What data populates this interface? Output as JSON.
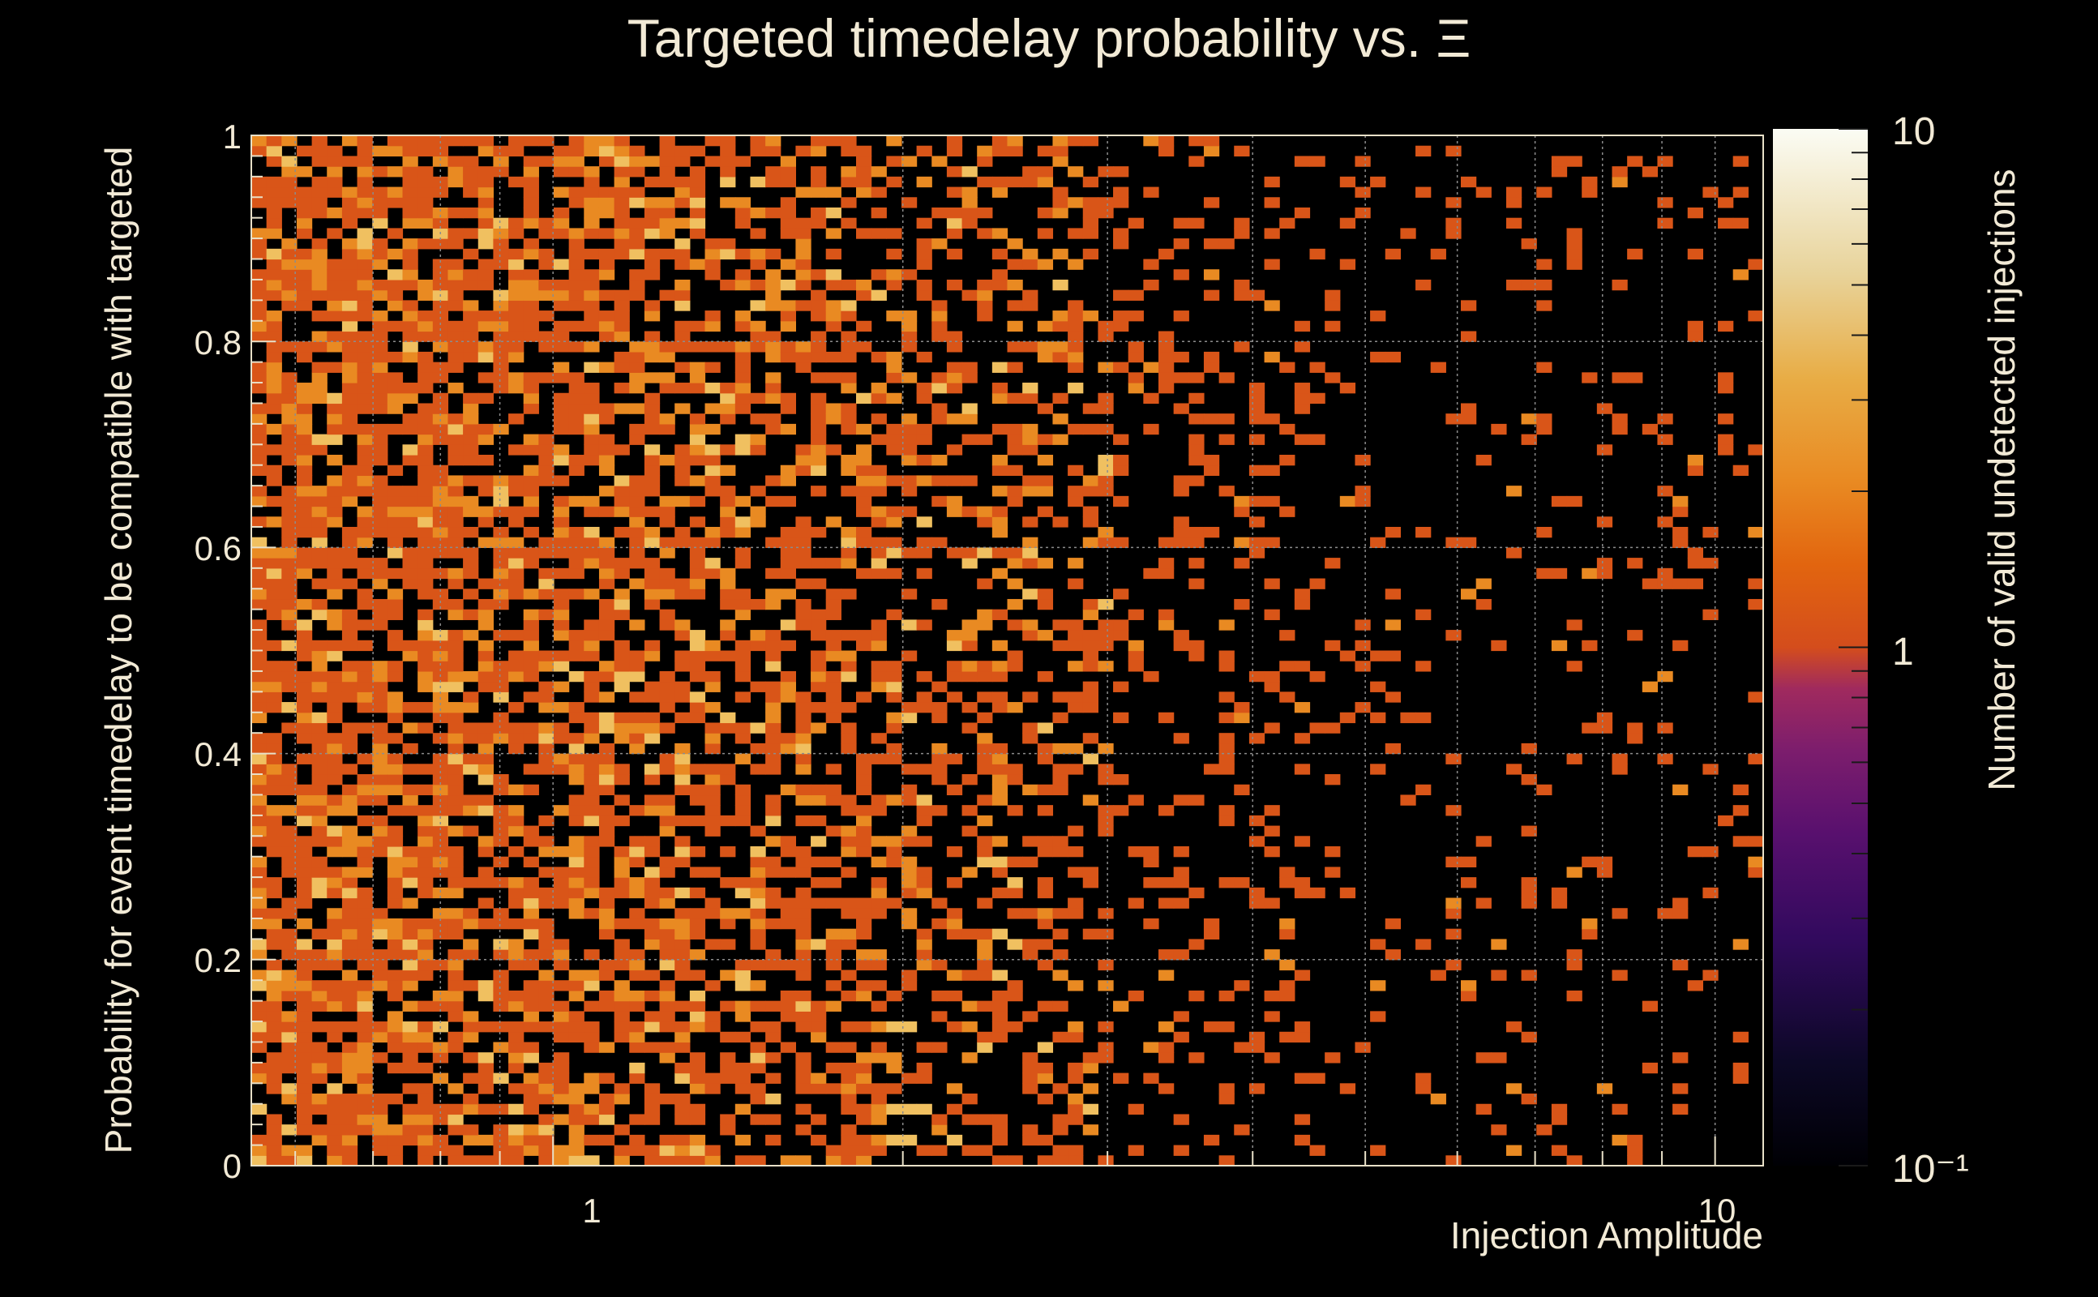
{
  "chart_data": {
    "type": "heatmap",
    "title": "Targeted timedelay probability vs. Ξ",
    "xlabel": "Injection Amplitude",
    "ylabel": "Probability for event timedelay to be compatible with targeted",
    "zlabel": "Number of valid undetected injections",
    "x_scale": "log",
    "xlim": [
      0.55,
      11
    ],
    "ylim": [
      0,
      1
    ],
    "z_scale": "log",
    "zlim": [
      0.1,
      10
    ],
    "x_ticks": [
      {
        "value": 1,
        "label": "1"
      },
      {
        "value": 10,
        "label": "10"
      }
    ],
    "y_ticks": [
      {
        "value": 0,
        "label": "0"
      },
      {
        "value": 0.2,
        "label": "0.2"
      },
      {
        "value": 0.4,
        "label": "0.4"
      },
      {
        "value": 0.6,
        "label": "0.6"
      },
      {
        "value": 0.8,
        "label": "0.8"
      },
      {
        "value": 1,
        "label": "1"
      }
    ],
    "z_ticks": [
      {
        "value": 0.1,
        "label": "10⁻¹"
      },
      {
        "value": 1,
        "label": "1"
      },
      {
        "value": 10,
        "label": "10"
      }
    ],
    "grid": true,
    "colormap": "inferno",
    "x_bins": 100,
    "y_bins": 100,
    "count_values": [
      1,
      2,
      3
    ],
    "columns": [
      {
        "x_range": [
          0.55,
          0.84
        ],
        "fill_fraction": 0.72
      },
      {
        "x_range": [
          0.84,
          1.3
        ],
        "fill_fraction": 0.62
      },
      {
        "x_range": [
          1.3,
          2.0
        ],
        "fill_fraction": 0.5
      },
      {
        "x_range": [
          2.0,
          3.0
        ],
        "fill_fraction": 0.38
      },
      {
        "x_range": [
          3.0,
          4.5
        ],
        "fill_fraction": 0.2
      },
      {
        "x_range": [
          4.5,
          11
        ],
        "fill_fraction": 0.09
      }
    ]
  },
  "colors": {
    "background": "#000000",
    "text": "#f2ead6",
    "grid": "#8c8c8c",
    "count_1": "#d95518",
    "count_2": "#e98a22",
    "count_3": "#f0c060"
  }
}
